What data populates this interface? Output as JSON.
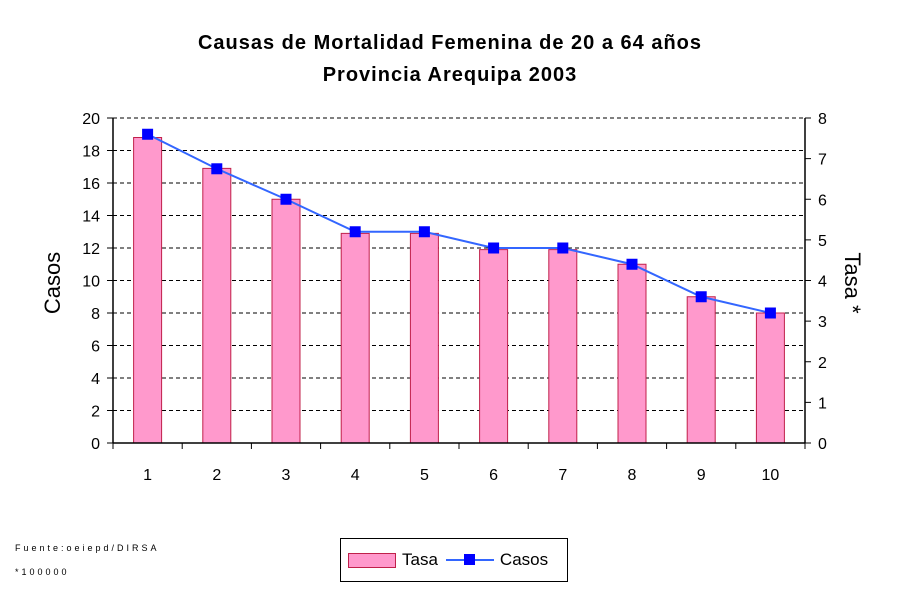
{
  "chart_data": {
    "type": "bar+line",
    "title": [
      "Causas de Mortalidad Femenina de 20 a 64 años",
      "Provincia Arequipa 2003"
    ],
    "xlabel": "",
    "ylabel": "Casos",
    "y2label": "Tasa *",
    "categories": [
      "1",
      "2",
      "3",
      "4",
      "5",
      "6",
      "7",
      "8",
      "9",
      "10"
    ],
    "ylim": [
      0,
      20
    ],
    "y2lim": [
      0,
      8
    ],
    "yticks": [
      "0",
      "2",
      "4",
      "6",
      "8",
      "10",
      "12",
      "14",
      "16",
      "18",
      "20"
    ],
    "y2ticks": [
      "0",
      "1",
      "2",
      "3",
      "4",
      "5",
      "6",
      "7",
      "8"
    ],
    "grid": true,
    "legend_position": "bottom",
    "series": [
      {
        "name": "Tasa",
        "type": "bar",
        "axis": "left",
        "color": "#FF99CC",
        "edge_color": "#C0204A",
        "values": [
          18.8,
          16.9,
          15.0,
          12.9,
          12.9,
          11.9,
          11.9,
          11.0,
          9.0,
          8.0
        ]
      },
      {
        "name": "Casos",
        "type": "line",
        "axis": "right",
        "color": "#3366FF",
        "marker_color": "#0000FF",
        "values": [
          7.6,
          6.75,
          6.0,
          5.2,
          5.2,
          4.8,
          4.8,
          4.4,
          3.6,
          3.2
        ]
      }
    ]
  },
  "footnotes": {
    "source": "Fuente:oeiepd/DIRSA",
    "note": "*100000"
  },
  "legend": {
    "bar_label": "Tasa",
    "line_label": "Casos"
  }
}
